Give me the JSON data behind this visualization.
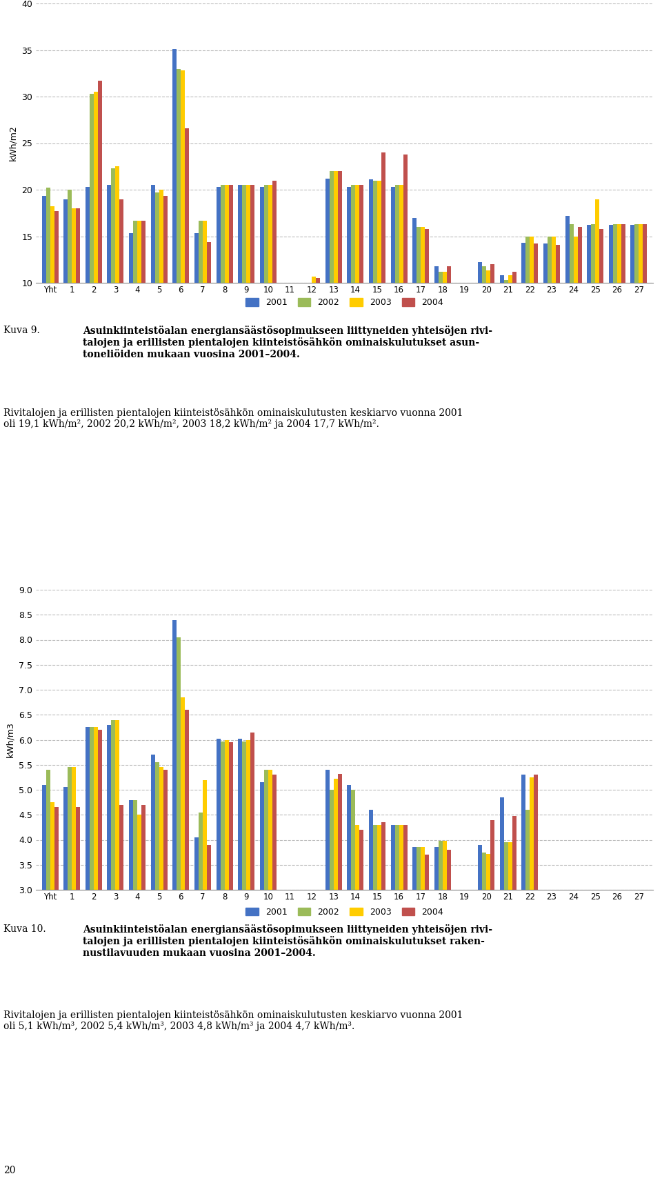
{
  "chart1": {
    "ylabel": "kWh/m2",
    "ylim": [
      10,
      40
    ],
    "yticks": [
      10,
      15,
      20,
      25,
      30,
      35,
      40
    ],
    "categories": [
      "Yht",
      "1",
      "2",
      "3",
      "4",
      "5",
      "6",
      "7",
      "8",
      "9",
      "10",
      "11",
      "12",
      "13",
      "14",
      "15",
      "16",
      "17",
      "18",
      "19",
      "20",
      "21",
      "22",
      "23",
      "24",
      "25",
      "26",
      "27"
    ],
    "data_2001": [
      19.3,
      19.0,
      20.3,
      20.5,
      15.3,
      20.5,
      35.1,
      15.3,
      20.3,
      20.5,
      20.3,
      0,
      0,
      21.2,
      20.3,
      21.1,
      20.3,
      17.0,
      11.8,
      0,
      12.2,
      10.8,
      14.3,
      14.2,
      17.2,
      16.2,
      16.2,
      16.2
    ],
    "data_2002": [
      20.2,
      20.0,
      30.3,
      22.3,
      16.7,
      19.7,
      33.0,
      16.7,
      20.5,
      20.5,
      20.5,
      0,
      0,
      22.0,
      20.5,
      21.0,
      20.5,
      16.0,
      11.2,
      0,
      11.8,
      10.3,
      15.0,
      15.0,
      16.3,
      16.3,
      16.3,
      16.3
    ],
    "data_2003": [
      18.2,
      18.0,
      30.5,
      22.5,
      16.7,
      20.0,
      32.8,
      16.7,
      20.5,
      20.5,
      20.5,
      0,
      10.7,
      22.0,
      20.5,
      21.0,
      20.5,
      16.0,
      11.2,
      0,
      11.3,
      10.8,
      15.0,
      15.0,
      15.0,
      19.0,
      16.3,
      16.3
    ],
    "data_2004": [
      17.7,
      18.0,
      31.7,
      19.0,
      16.7,
      19.3,
      26.6,
      14.4,
      20.5,
      20.5,
      21.0,
      0,
      10.5,
      22.0,
      20.5,
      24.0,
      23.8,
      15.8,
      11.8,
      0,
      12.0,
      11.2,
      14.2,
      14.1,
      16.0,
      15.8,
      16.3,
      16.3
    ]
  },
  "chart2": {
    "ylabel": "kWh/m3",
    "ylim": [
      3,
      9
    ],
    "yticks": [
      3,
      3.5,
      4,
      4.5,
      5,
      5.5,
      6,
      6.5,
      7,
      7.5,
      8,
      8.5,
      9
    ],
    "categories": [
      "Yht",
      "1",
      "2",
      "3",
      "4",
      "5",
      "6",
      "7",
      "8",
      "9",
      "10",
      "11",
      "12",
      "13",
      "14",
      "15",
      "16",
      "17",
      "18",
      "19",
      "20",
      "21",
      "22",
      "23",
      "24",
      "25",
      "26",
      "27"
    ],
    "data_2001": [
      5.1,
      5.05,
      6.25,
      6.3,
      4.8,
      5.7,
      8.4,
      4.05,
      6.02,
      6.02,
      5.15,
      0,
      0,
      5.4,
      5.1,
      4.6,
      4.3,
      3.85,
      3.85,
      0,
      3.9,
      4.85,
      5.3,
      0,
      0,
      0,
      0,
      0
    ],
    "data_2002": [
      5.4,
      5.45,
      6.25,
      6.4,
      4.8,
      5.55,
      8.05,
      4.55,
      5.97,
      5.97,
      5.4,
      0,
      0,
      5.0,
      5.0,
      4.3,
      4.3,
      3.85,
      3.98,
      0,
      3.75,
      3.95,
      4.6,
      0,
      0,
      0,
      0,
      0
    ],
    "data_2003": [
      4.75,
      5.45,
      6.25,
      6.4,
      4.5,
      5.45,
      6.85,
      5.2,
      6.0,
      6.0,
      5.4,
      0,
      0,
      5.22,
      4.3,
      4.3,
      4.3,
      3.85,
      3.98,
      0,
      3.72,
      3.95,
      5.25,
      0,
      0,
      0,
      0,
      0
    ],
    "data_2004": [
      4.65,
      4.65,
      6.2,
      4.7,
      4.7,
      5.4,
      6.6,
      3.9,
      5.95,
      6.15,
      5.3,
      0,
      0,
      5.32,
      4.2,
      4.35,
      4.3,
      3.7,
      3.8,
      0,
      4.4,
      4.48,
      5.3,
      0,
      0,
      0,
      0,
      0
    ]
  },
  "colors": {
    "2001": "#4472C4",
    "2002": "#9BBB59",
    "2003": "#FFCC00",
    "2004": "#C0504D"
  },
  "background_color": "#FFFFFF"
}
